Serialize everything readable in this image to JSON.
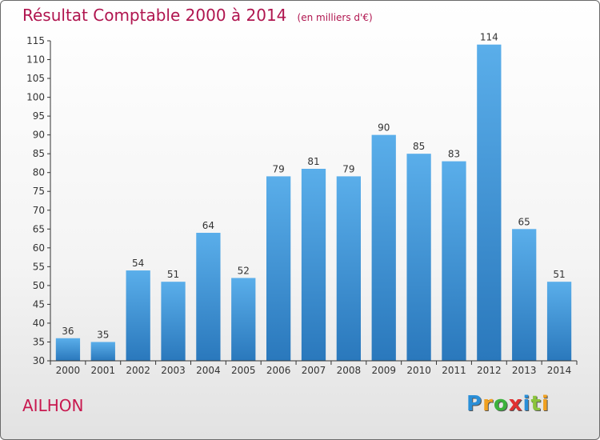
{
  "chart_data": {
    "type": "bar",
    "title": "Résultat Comptable 2000 à 2014",
    "subtitle": "(en milliers d'€)",
    "categories": [
      "2000",
      "2001",
      "2002",
      "2003",
      "2004",
      "2005",
      "2006",
      "2007",
      "2008",
      "2009",
      "2010",
      "2011",
      "2012",
      "2013",
      "2014"
    ],
    "values": [
      36,
      35,
      54,
      51,
      64,
      52,
      79,
      81,
      79,
      90,
      85,
      83,
      114,
      65,
      51
    ],
    "value_labels": [
      "36",
      "35",
      "54",
      "51",
      "64",
      "52",
      "79",
      "81",
      "79",
      "90",
      "85",
      "83",
      "114",
      "65",
      "51"
    ],
    "ylim": [
      30,
      115
    ],
    "yticks": [
      30,
      35,
      40,
      45,
      50,
      55,
      60,
      65,
      70,
      75,
      80,
      85,
      90,
      95,
      100,
      105,
      110,
      115
    ],
    "ytick_labels": [
      "30",
      "35",
      "40",
      "45",
      "50",
      "55",
      "60",
      "65",
      "70",
      "75",
      "80",
      "85",
      "90",
      "95",
      "100",
      "105",
      "110",
      "115"
    ],
    "xlabel": "",
    "ylabel": "",
    "grid": false,
    "bar_color_top": "#5aaeea",
    "bar_color_bottom": "#2a78bc"
  },
  "commune": "AILHON",
  "logo": {
    "letters": [
      "P",
      "r",
      "o",
      "x",
      "i",
      "t",
      "i"
    ],
    "colors": [
      "#2a8fd8",
      "#f0a020",
      "#3cb23c",
      "#e03030",
      "#2a8fd8",
      "#8bc43c",
      "#f0a020"
    ]
  }
}
